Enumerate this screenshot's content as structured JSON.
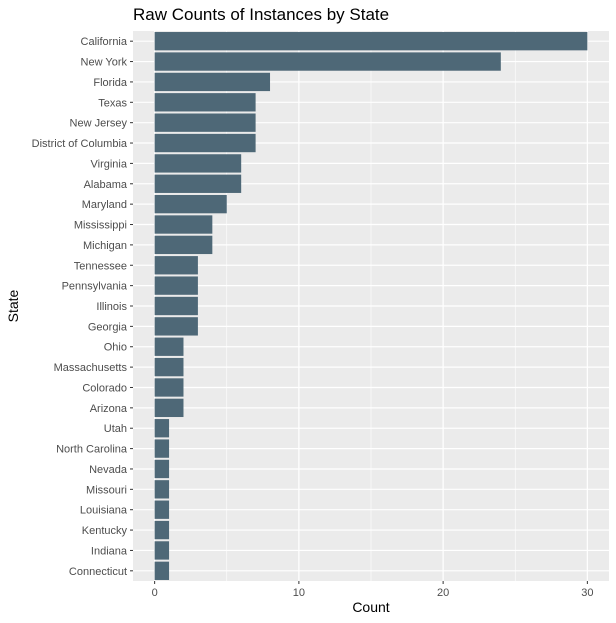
{
  "chart_data": {
    "type": "bar",
    "orientation": "horizontal",
    "title": "Raw Counts of Instances by State",
    "xlabel": "Count",
    "ylabel": "State",
    "categories": [
      "California",
      "New York",
      "Florida",
      "Texas",
      "New Jersey",
      "District of Columbia",
      "Virginia",
      "Alabama",
      "Maryland",
      "Mississippi",
      "Michigan",
      "Tennessee",
      "Pennsylvania",
      "Illinois",
      "Georgia",
      "Ohio",
      "Massachusetts",
      "Colorado",
      "Arizona",
      "Utah",
      "North Carolina",
      "Nevada",
      "Missouri",
      "Louisiana",
      "Kentucky",
      "Indiana",
      "Connecticut"
    ],
    "values": [
      30,
      24,
      8,
      7,
      7,
      7,
      6,
      6,
      5,
      4,
      4,
      3,
      3,
      3,
      3,
      2,
      2,
      2,
      2,
      1,
      1,
      1,
      1,
      1,
      1,
      1,
      1
    ],
    "xlim": [
      -1.5,
      31.5
    ],
    "xticks": [
      0,
      10,
      20,
      30
    ],
    "xtick_labels": [
      "0",
      "10",
      "20",
      "30"
    ],
    "grid": true,
    "colors": {
      "bar": "#4e6877",
      "panel": "#ebebeb",
      "grid": "#ffffff"
    }
  }
}
